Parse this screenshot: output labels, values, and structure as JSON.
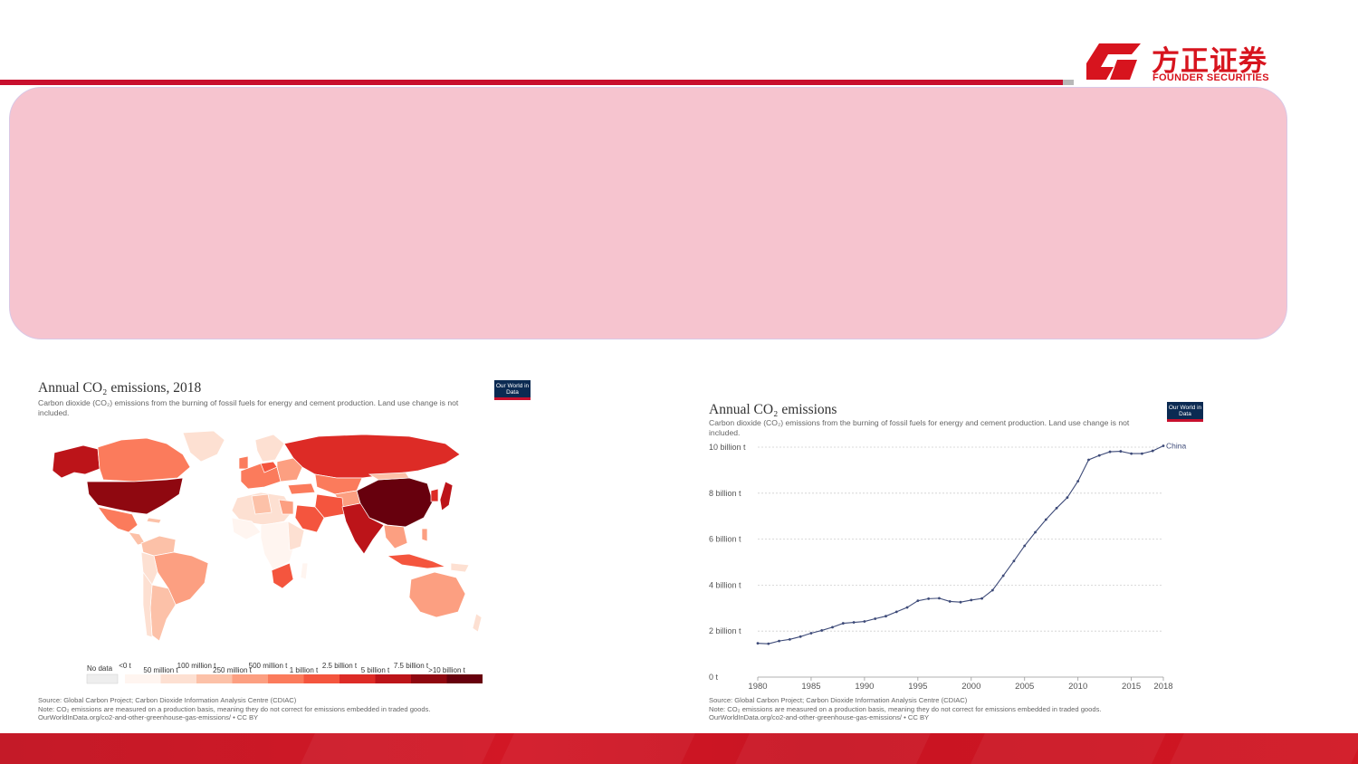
{
  "brand": {
    "name_cn": "方正证券",
    "name_en": "FOUNDER SECURITIES",
    "color": "#d7141e"
  },
  "colors": {
    "accent": "#c8102e",
    "callout_fill": "#f6c4cf",
    "line_series": "#3d4a78"
  },
  "map_panel": {
    "title": "Annual CO₂ emissions, 2018",
    "subtitle": "Carbon dioxide (CO₂) emissions from the burning of fossil fuels for energy and cement production. Land use change is not included.",
    "badge": "Our World in Data",
    "legend": {
      "no_data": "No data",
      "upper_labels": [
        "<0 t",
        "100 million t",
        "500 million t",
        "2.5 billion t",
        "7.5 billion t"
      ],
      "lower_labels": [
        "50 million t",
        "250 million t",
        "1 billion t",
        "5 billion t",
        ">10 billion t"
      ],
      "colors": [
        "#fff5f0",
        "#fde0d2",
        "#fcc1a8",
        "#fc9f81",
        "#fb7b5c",
        "#f4553e",
        "#dd2b26",
        "#bc1419",
        "#8f0810",
        "#67000d"
      ]
    },
    "source": "Source: Global Carbon Project; Carbon Dioxide Information Analysis Centre (CDIAC)",
    "note": "Note: CO₂ emissions are measured on a production basis, meaning they do not correct for emissions embedded in traded goods.",
    "url": "OurWorldInData.org/co2-and-other-greenhouse-gas-emissions/ • CC BY"
  },
  "line_panel": {
    "title": "Annual CO₂ emissions",
    "subtitle": "Carbon dioxide (CO₂) emissions from the burning of fossil fuels for energy and cement production. Land use change is not included.",
    "badge": "Our World in Data",
    "source": "Source: Global Carbon Project; Carbon Dioxide Information Analysis Centre (CDIAC)",
    "note": "Note: CO₂ emissions are measured on a production basis, meaning they do not correct for emissions embedded in traded goods.",
    "url": "OurWorldInData.org/co2-and-other-greenhouse-gas-emissions/ • CC BY"
  },
  "chart_data": [
    {
      "type": "map",
      "title": "Annual CO₂ emissions, 2018",
      "regions": [
        {
          "name": "China",
          "bin": ">10 billion t"
        },
        {
          "name": "United States",
          "bin": "5 billion t"
        },
        {
          "name": "India",
          "bin": "2.5 billion t"
        },
        {
          "name": "Russia",
          "bin": "1 billion t"
        },
        {
          "name": "Japan",
          "bin": "1 billion t"
        },
        {
          "name": "Canada",
          "bin": "500 million t"
        },
        {
          "name": "Australia",
          "bin": "250 million t"
        },
        {
          "name": "Brazil",
          "bin": "250 million t"
        },
        {
          "name": "Greenland",
          "bin": "<0 t"
        }
      ]
    },
    {
      "type": "line",
      "title": "Annual CO₂ emissions",
      "series": [
        {
          "name": "China",
          "x": [
            1980,
            1981,
            1982,
            1983,
            1984,
            1985,
            1986,
            1987,
            1988,
            1989,
            1990,
            1991,
            1992,
            1993,
            1994,
            1995,
            1996,
            1997,
            1998,
            1999,
            2000,
            2001,
            2002,
            2003,
            2004,
            2005,
            2006,
            2007,
            2008,
            2009,
            2010,
            2011,
            2012,
            2013,
            2014,
            2015,
            2016,
            2017,
            2018
          ],
          "y": [
            1.47,
            1.45,
            1.57,
            1.64,
            1.76,
            1.91,
            2.03,
            2.17,
            2.34,
            2.38,
            2.42,
            2.54,
            2.65,
            2.84,
            3.03,
            3.32,
            3.41,
            3.43,
            3.29,
            3.26,
            3.35,
            3.42,
            3.78,
            4.41,
            5.05,
            5.71,
            6.3,
            6.85,
            7.35,
            7.81,
            8.52,
            9.45,
            9.64,
            9.8,
            9.82,
            9.72,
            9.72,
            9.84,
            10.06
          ]
        }
      ],
      "xlim": [
        1980,
        2018
      ],
      "ylim": [
        0,
        10
      ],
      "x_ticks": [
        "1980",
        "1985",
        "1990",
        "1995",
        "2000",
        "2005",
        "2010",
        "2015",
        "2018"
      ],
      "y_ticks": [
        "0 t",
        "2 billion t",
        "4 billion t",
        "6 billion t",
        "8 billion t",
        "10 billion t"
      ],
      "grid": true
    }
  ]
}
